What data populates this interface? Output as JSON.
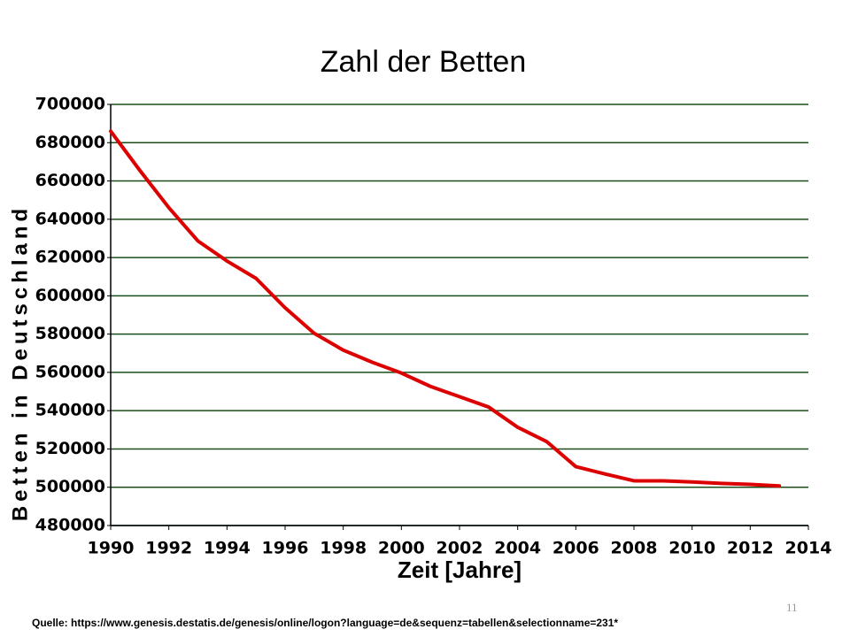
{
  "chart_data": {
    "type": "line",
    "title": "Zahl der Betten",
    "x_label": "Zeit [Jahre]",
    "y_label": "Betten in Deutschland",
    "x": [
      1990,
      1991,
      1992,
      1993,
      1994,
      1995,
      1996,
      1997,
      1998,
      1999,
      2000,
      2001,
      2002,
      2003,
      2004,
      2005,
      2006,
      2007,
      2008,
      2009,
      2010,
      2011,
      2012,
      2013
    ],
    "values": [
      685976,
      665565,
      646062,
      628658,
      618176,
      609123,
      593743,
      580425,
      571629,
      565268,
      559651,
      552680,
      547284,
      541901,
      531333,
      523824,
      510767,
      506954,
      503360,
      503341,
      502749,
      502029,
      501475,
      500671
    ],
    "color": "#dd0000",
    "xlim": [
      1990,
      2014
    ],
    "xticks": [
      1990,
      1992,
      1994,
      1996,
      1998,
      2000,
      2002,
      2004,
      2006,
      2008,
      2010,
      2012,
      2014
    ],
    "ylim": [
      480000,
      700000
    ],
    "yticks": [
      480000,
      500000,
      520000,
      540000,
      560000,
      580000,
      600000,
      620000,
      640000,
      660000,
      680000,
      700000
    ],
    "grid": true,
    "grid_color": "#1a4d1a"
  },
  "source": "Quelle: https://www.genesis.destatis.de/genesis/online/logon?language=de&sequenz=tabellen&selectionname=231*",
  "page_number": "11"
}
